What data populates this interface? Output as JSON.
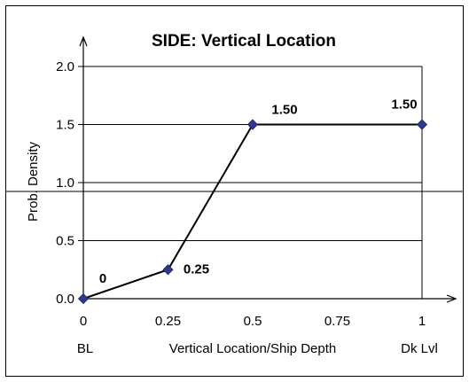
{
  "chart_data": {
    "type": "line",
    "title": "SIDE: Vertical Location",
    "xlabel": "Vertical Location/Ship Depth",
    "ylabel": "Prob. Density",
    "x_ticks": [
      "0",
      "0.25",
      "0.5",
      "0.75",
      "1"
    ],
    "y_ticks": [
      "0.0",
      "0.5",
      "1.0",
      "1.5",
      "2.0"
    ],
    "x_end_labels": {
      "left": "BL",
      "right": "Dk Lvl"
    },
    "xlim": [
      0,
      1
    ],
    "ylim": [
      0,
      2.0
    ],
    "grid": true,
    "series": [
      {
        "x": [
          0,
          0.25,
          0.5,
          1
        ],
        "y": [
          0,
          0.25,
          1.5,
          1.5
        ],
        "labels": [
          "0",
          "0.25",
          "1.50",
          "1.50"
        ],
        "color": "#000000",
        "marker_color": "#2B3990"
      }
    ]
  }
}
